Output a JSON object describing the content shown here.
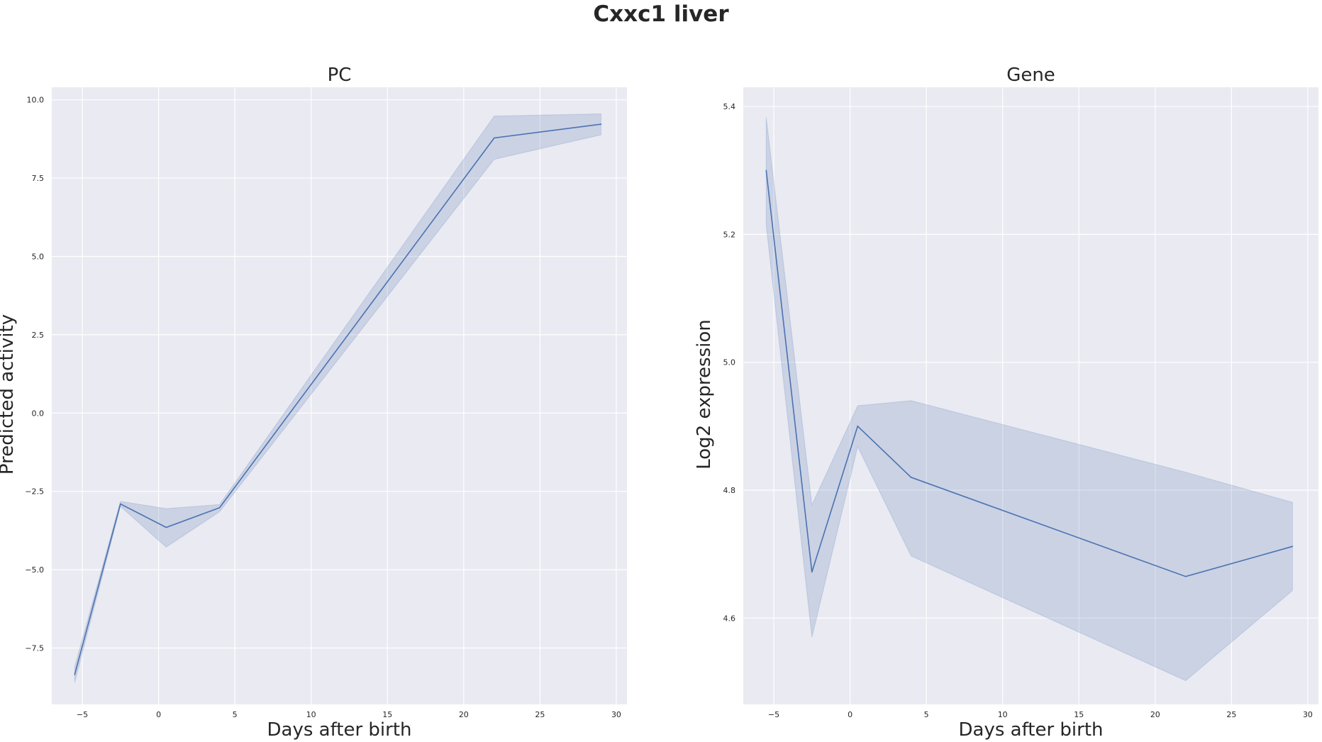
{
  "figure": {
    "title": "Cxxc1 liver"
  },
  "colors": {
    "line": "#4c72b0",
    "band": "#4c72b0",
    "plot_bg": "#eaeaf2",
    "grid": "#ffffff"
  },
  "chart_data": [
    {
      "type": "line",
      "title": "PC",
      "xlabel": "Days after birth",
      "ylabel": "Predicted activity",
      "grid": true,
      "xlim": [
        -7,
        30.7
      ],
      "ylim": [
        -9.3,
        10.4
      ],
      "xticks": [
        -5,
        0,
        5,
        10,
        15,
        20,
        25,
        30
      ],
      "xtick_labels": [
        "−5",
        "0",
        "5",
        "10",
        "15",
        "20",
        "25",
        "30"
      ],
      "yticks": [
        -7.5,
        -5.0,
        -2.5,
        0.0,
        2.5,
        5.0,
        7.5,
        10.0
      ],
      "ytick_labels": [
        "−7.5",
        "−5.0",
        "−2.5",
        "0.0",
        "2.5",
        "5.0",
        "7.5",
        "10.0"
      ],
      "x": [
        -5.5,
        -2.5,
        0.5,
        4,
        22,
        29
      ],
      "y": [
        -8.35,
        -2.9,
        -3.65,
        -3.02,
        8.78,
        9.22
      ],
      "ci_lower": [
        -8.6,
        -2.98,
        -4.28,
        -3.15,
        8.1,
        8.88
      ],
      "ci_upper": [
        -8.1,
        -2.82,
        -3.05,
        -2.92,
        9.48,
        9.55
      ]
    },
    {
      "type": "line",
      "title": "Gene",
      "xlabel": "Days after birth",
      "ylabel": "Log2 expression",
      "grid": true,
      "xlim": [
        -7,
        30.7
      ],
      "ylim": [
        4.465,
        5.43
      ],
      "xticks": [
        -5,
        0,
        5,
        10,
        15,
        20,
        25,
        30
      ],
      "xtick_labels": [
        "−5",
        "0",
        "5",
        "10",
        "15",
        "20",
        "25",
        "30"
      ],
      "yticks": [
        4.6,
        4.8,
        5.0,
        5.2,
        5.4
      ],
      "ytick_labels": [
        "4.6",
        "4.8",
        "5.0",
        "5.2",
        "5.4"
      ],
      "x": [
        -5.5,
        -2.5,
        0.5,
        4,
        22,
        29
      ],
      "y": [
        5.3,
        4.672,
        4.9,
        4.82,
        4.665,
        4.712
      ],
      "ci_lower": [
        5.215,
        4.57,
        4.868,
        4.697,
        4.502,
        4.643
      ],
      "ci_upper": [
        5.383,
        4.777,
        4.932,
        4.94,
        4.828,
        4.781
      ]
    }
  ]
}
